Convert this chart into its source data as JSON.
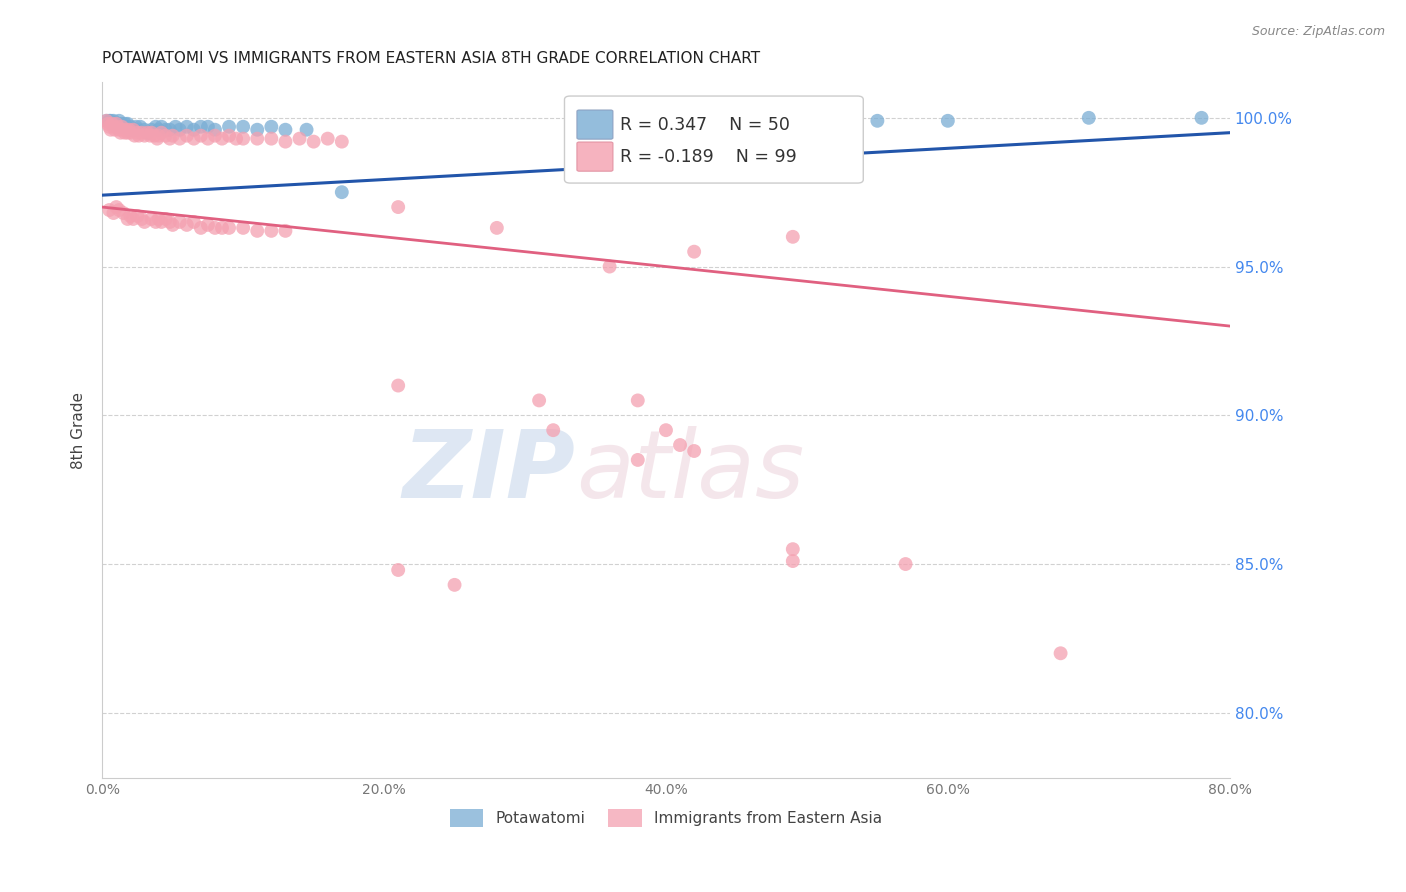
{
  "title": "POTAWATOMI VS IMMIGRANTS FROM EASTERN ASIA 8TH GRADE CORRELATION CHART",
  "source_text": "Source: ZipAtlas.com",
  "ylabel": "8th Grade",
  "xlabel_ticks": [
    "0.0%",
    "20.0%",
    "40.0%",
    "60.0%",
    "80.0%"
  ],
  "ylabel_ticks": [
    "80.0%",
    "85.0%",
    "90.0%",
    "95.0%",
    "100.0%"
  ],
  "xmin": 0.0,
  "xmax": 0.8,
  "ymin": 0.778,
  "ymax": 1.012,
  "legend_blue_label": "Potawatomi",
  "legend_pink_label": "Immigrants from Eastern Asia",
  "r_blue": 0.347,
  "n_blue": 50,
  "r_pink": -0.189,
  "n_pink": 99,
  "blue_color": "#7aadd4",
  "pink_color": "#f4a0b0",
  "trendline_blue_color": "#2255aa",
  "trendline_pink_color": "#e06080",
  "blue_scatter": [
    [
      0.003,
      0.999
    ],
    [
      0.005,
      0.999
    ],
    [
      0.006,
      0.999
    ],
    [
      0.007,
      0.998
    ],
    [
      0.008,
      0.999
    ],
    [
      0.009,
      0.998
    ],
    [
      0.01,
      0.997
    ],
    [
      0.011,
      0.998
    ],
    [
      0.012,
      0.999
    ],
    [
      0.013,
      0.997
    ],
    [
      0.014,
      0.998
    ],
    [
      0.015,
      0.997
    ],
    [
      0.016,
      0.998
    ],
    [
      0.017,
      0.997
    ],
    [
      0.018,
      0.998
    ],
    [
      0.019,
      0.996
    ],
    [
      0.02,
      0.997
    ],
    [
      0.022,
      0.996
    ],
    [
      0.024,
      0.997
    ],
    [
      0.025,
      0.996
    ],
    [
      0.027,
      0.997
    ],
    [
      0.03,
      0.996
    ],
    [
      0.032,
      0.995
    ],
    [
      0.035,
      0.996
    ],
    [
      0.038,
      0.997
    ],
    [
      0.04,
      0.996
    ],
    [
      0.042,
      0.997
    ],
    [
      0.045,
      0.996
    ],
    [
      0.048,
      0.996
    ],
    [
      0.052,
      0.997
    ],
    [
      0.055,
      0.996
    ],
    [
      0.06,
      0.997
    ],
    [
      0.065,
      0.996
    ],
    [
      0.07,
      0.997
    ],
    [
      0.075,
      0.997
    ],
    [
      0.08,
      0.996
    ],
    [
      0.09,
      0.997
    ],
    [
      0.1,
      0.997
    ],
    [
      0.11,
      0.996
    ],
    [
      0.12,
      0.997
    ],
    [
      0.13,
      0.996
    ],
    [
      0.145,
      0.996
    ],
    [
      0.17,
      0.975
    ],
    [
      0.35,
      0.999
    ],
    [
      0.38,
      0.998
    ],
    [
      0.5,
      0.999
    ],
    [
      0.55,
      0.999
    ],
    [
      0.6,
      0.999
    ],
    [
      0.7,
      1.0
    ],
    [
      0.78,
      1.0
    ]
  ],
  "pink_scatter": [
    [
      0.003,
      0.999
    ],
    [
      0.004,
      0.998
    ],
    [
      0.005,
      0.997
    ],
    [
      0.006,
      0.996
    ],
    [
      0.007,
      0.998
    ],
    [
      0.008,
      0.997
    ],
    [
      0.009,
      0.996
    ],
    [
      0.01,
      0.998
    ],
    [
      0.011,
      0.997
    ],
    [
      0.012,
      0.996
    ],
    [
      0.013,
      0.995
    ],
    [
      0.014,
      0.997
    ],
    [
      0.015,
      0.996
    ],
    [
      0.016,
      0.995
    ],
    [
      0.017,
      0.996
    ],
    [
      0.018,
      0.995
    ],
    [
      0.019,
      0.996
    ],
    [
      0.02,
      0.995
    ],
    [
      0.022,
      0.996
    ],
    [
      0.023,
      0.994
    ],
    [
      0.025,
      0.995
    ],
    [
      0.026,
      0.994
    ],
    [
      0.028,
      0.995
    ],
    [
      0.03,
      0.994
    ],
    [
      0.032,
      0.995
    ],
    [
      0.034,
      0.994
    ],
    [
      0.035,
      0.995
    ],
    [
      0.037,
      0.994
    ],
    [
      0.039,
      0.993
    ],
    [
      0.04,
      0.994
    ],
    [
      0.042,
      0.995
    ],
    [
      0.045,
      0.994
    ],
    [
      0.048,
      0.993
    ],
    [
      0.05,
      0.994
    ],
    [
      0.055,
      0.993
    ],
    [
      0.06,
      0.994
    ],
    [
      0.065,
      0.993
    ],
    [
      0.07,
      0.994
    ],
    [
      0.075,
      0.993
    ],
    [
      0.08,
      0.994
    ],
    [
      0.085,
      0.993
    ],
    [
      0.09,
      0.994
    ],
    [
      0.095,
      0.993
    ],
    [
      0.1,
      0.993
    ],
    [
      0.11,
      0.993
    ],
    [
      0.12,
      0.993
    ],
    [
      0.13,
      0.992
    ],
    [
      0.14,
      0.993
    ],
    [
      0.15,
      0.992
    ],
    [
      0.16,
      0.993
    ],
    [
      0.17,
      0.992
    ],
    [
      0.005,
      0.969
    ],
    [
      0.008,
      0.968
    ],
    [
      0.01,
      0.97
    ],
    [
      0.012,
      0.969
    ],
    [
      0.015,
      0.968
    ],
    [
      0.018,
      0.966
    ],
    [
      0.02,
      0.967
    ],
    [
      0.022,
      0.966
    ],
    [
      0.025,
      0.967
    ],
    [
      0.028,
      0.966
    ],
    [
      0.03,
      0.965
    ],
    [
      0.035,
      0.966
    ],
    [
      0.038,
      0.965
    ],
    [
      0.04,
      0.966
    ],
    [
      0.042,
      0.965
    ],
    [
      0.045,
      0.966
    ],
    [
      0.048,
      0.965
    ],
    [
      0.05,
      0.964
    ],
    [
      0.055,
      0.965
    ],
    [
      0.06,
      0.964
    ],
    [
      0.065,
      0.965
    ],
    [
      0.07,
      0.963
    ],
    [
      0.075,
      0.964
    ],
    [
      0.08,
      0.963
    ],
    [
      0.085,
      0.963
    ],
    [
      0.09,
      0.963
    ],
    [
      0.1,
      0.963
    ],
    [
      0.11,
      0.962
    ],
    [
      0.12,
      0.962
    ],
    [
      0.13,
      0.962
    ],
    [
      0.21,
      0.97
    ],
    [
      0.28,
      0.963
    ],
    [
      0.36,
      0.95
    ],
    [
      0.42,
      0.955
    ],
    [
      0.49,
      0.96
    ],
    [
      0.21,
      0.91
    ],
    [
      0.31,
      0.905
    ],
    [
      0.32,
      0.895
    ],
    [
      0.38,
      0.905
    ],
    [
      0.4,
      0.895
    ],
    [
      0.41,
      0.89
    ],
    [
      0.38,
      0.885
    ],
    [
      0.42,
      0.888
    ],
    [
      0.49,
      0.855
    ],
    [
      0.49,
      0.851
    ],
    [
      0.57,
      0.85
    ],
    [
      0.21,
      0.848
    ],
    [
      0.25,
      0.843
    ],
    [
      0.68,
      0.82
    ]
  ],
  "watermark_zip": "ZIP",
  "watermark_atlas": "atlas",
  "grid_color": "#cccccc",
  "background_color": "#ffffff",
  "title_fontsize": 11,
  "axis_label_color": "#444444",
  "right_axis_color": "#4488ee",
  "dot_size": 100
}
